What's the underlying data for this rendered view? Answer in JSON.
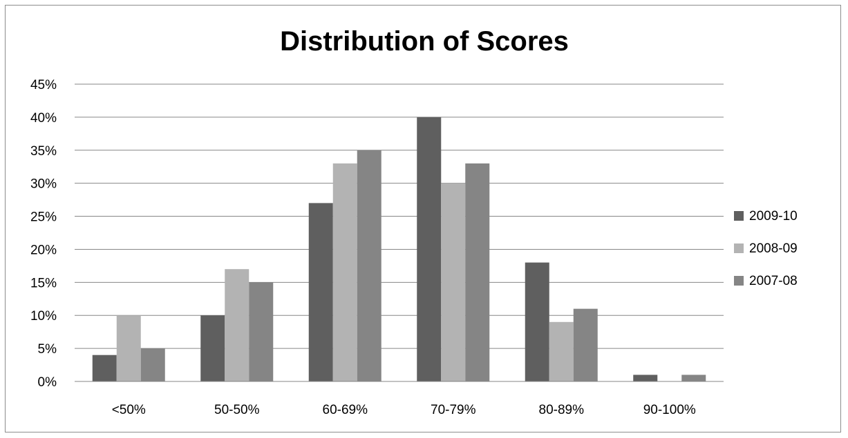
{
  "chart_data": {
    "type": "bar",
    "title": "Distribution of Scores",
    "xlabel": "",
    "ylabel": "",
    "categories": [
      "<50%",
      "50-50%",
      "60-69%",
      "70-79%",
      "80-89%",
      "90-100%"
    ],
    "y_ticks": [
      "0%",
      "5%",
      "10%",
      "15%",
      "20%",
      "25%",
      "30%",
      "35%",
      "40%",
      "45%"
    ],
    "ylim": [
      0,
      45
    ],
    "grid": true,
    "legend_position": "right",
    "series": [
      {
        "name": "2009-10",
        "color": "#5f5f5f",
        "values": [
          4,
          10,
          27,
          40,
          18,
          1
        ]
      },
      {
        "name": "2008-09",
        "color": "#b3b3b3",
        "values": [
          10,
          17,
          33,
          30,
          9,
          0
        ]
      },
      {
        "name": "2007-08",
        "color": "#858585",
        "values": [
          5,
          15,
          35,
          33,
          11,
          1
        ]
      }
    ]
  }
}
